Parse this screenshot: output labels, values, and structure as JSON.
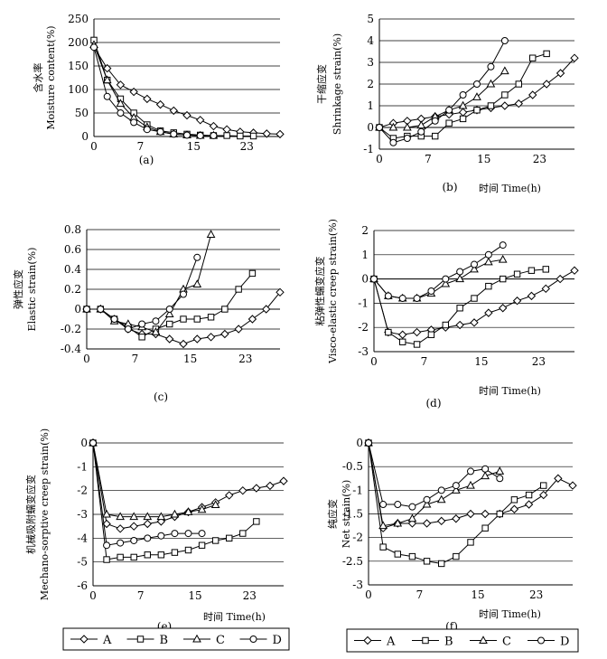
{
  "legend": {
    "entries": [
      "A",
      "B",
      "C",
      "D"
    ]
  },
  "chart_data": [
    {
      "id": "a",
      "type": "line",
      "panel_label": "(a)",
      "ylabel": "Moisture content(%)",
      "ylabel_cn": "含水率",
      "xlabel": "",
      "xticks": [
        0,
        7,
        15,
        23
      ],
      "yticks": [
        0,
        50,
        100,
        150,
        200,
        250
      ],
      "xlim": [
        0,
        28
      ],
      "ylim": [
        0,
        250
      ],
      "grid": true,
      "series": [
        {
          "name": "A",
          "x": [
            0,
            2,
            4,
            6,
            8,
            10,
            12,
            14,
            16,
            18,
            20,
            22,
            24,
            26,
            28
          ],
          "y": [
            190,
            145,
            110,
            95,
            80,
            68,
            55,
            45,
            35,
            22,
            15,
            10,
            8,
            6,
            5
          ]
        },
        {
          "name": "B",
          "x": [
            0,
            2,
            4,
            6,
            8,
            10,
            12,
            14,
            16,
            18,
            20,
            22,
            24
          ],
          "y": [
            205,
            120,
            80,
            50,
            25,
            12,
            8,
            5,
            3,
            2,
            2,
            1,
            1
          ]
        },
        {
          "name": "C",
          "x": [
            0,
            2,
            4,
            6,
            8,
            10,
            12,
            14,
            16,
            18
          ],
          "y": [
            195,
            120,
            70,
            40,
            20,
            10,
            5,
            3,
            2,
            2
          ]
        },
        {
          "name": "D",
          "x": [
            0,
            2,
            4,
            6,
            8,
            10,
            12,
            14,
            16,
            18
          ],
          "y": [
            190,
            85,
            50,
            30,
            15,
            10,
            5,
            3,
            2,
            2
          ]
        }
      ]
    },
    {
      "id": "b",
      "type": "line",
      "panel_label": "(b)",
      "ylabel": "Shrinkage strain(%)",
      "ylabel_cn": "干缩应变",
      "xlabel": "时间  Time(h)",
      "xticks": [
        0,
        7,
        15,
        23
      ],
      "yticks": [
        -1,
        0,
        1,
        2,
        3,
        4,
        5
      ],
      "xlim": [
        0,
        28
      ],
      "ylim": [
        -1,
        5
      ],
      "grid": true,
      "series": [
        {
          "name": "A",
          "x": [
            0,
            2,
            4,
            6,
            8,
            10,
            12,
            14,
            16,
            18,
            20,
            22,
            24,
            26,
            28
          ],
          "y": [
            0,
            0.2,
            0.3,
            0.4,
            0.5,
            0.6,
            0.7,
            0.8,
            0.9,
            1.0,
            1.1,
            1.5,
            2.0,
            2.5,
            3.2
          ]
        },
        {
          "name": "B",
          "x": [
            0,
            2,
            4,
            6,
            8,
            10,
            12,
            14,
            16,
            18,
            20,
            22,
            24
          ],
          "y": [
            0,
            -0.5,
            -0.4,
            -0.4,
            -0.4,
            0.2,
            0.4,
            0.8,
            1.0,
            1.5,
            2.0,
            3.2,
            3.4
          ]
        },
        {
          "name": "C",
          "x": [
            0,
            2,
            4,
            6,
            8,
            10,
            12,
            14,
            16,
            18
          ],
          "y": [
            0,
            0,
            0,
            0.1,
            0.5,
            0.8,
            1.0,
            1.4,
            2.0,
            2.6
          ]
        },
        {
          "name": "D",
          "x": [
            0,
            2,
            4,
            6,
            8,
            10,
            12,
            14,
            16,
            18
          ],
          "y": [
            0,
            -0.7,
            -0.5,
            -0.2,
            0.3,
            0.8,
            1.5,
            2.0,
            2.8,
            4.0
          ]
        }
      ]
    },
    {
      "id": "c",
      "type": "line",
      "panel_label": "(c)",
      "ylabel": "Elastic strain(%)",
      "ylabel_cn": "弹性应变",
      "xlabel": "",
      "xticks": [
        0,
        7,
        15,
        23
      ],
      "yticks": [
        -0.4,
        -0.2,
        0,
        0.2,
        0.4,
        0.6,
        0.8
      ],
      "xlim": [
        0,
        28
      ],
      "ylim": [
        -0.4,
        0.8
      ],
      "grid": true,
      "series": [
        {
          "name": "A",
          "x": [
            0,
            2,
            4,
            6,
            8,
            10,
            12,
            14,
            16,
            18,
            20,
            22,
            24,
            26,
            28
          ],
          "y": [
            0,
            0,
            -0.1,
            -0.2,
            -0.25,
            -0.25,
            -0.3,
            -0.35,
            -0.3,
            -0.28,
            -0.25,
            -0.2,
            -0.1,
            0,
            0.17
          ]
        },
        {
          "name": "B",
          "x": [
            0,
            2,
            4,
            6,
            8,
            10,
            12,
            14,
            16,
            18,
            20,
            22,
            24
          ],
          "y": [
            0,
            0,
            -0.1,
            -0.18,
            -0.28,
            -0.2,
            -0.15,
            -0.1,
            -0.1,
            -0.08,
            0,
            0.2,
            0.36
          ]
        },
        {
          "name": "C",
          "x": [
            0,
            2,
            4,
            6,
            8,
            10,
            12,
            14,
            16,
            18
          ],
          "y": [
            0,
            0,
            -0.12,
            -0.15,
            -0.18,
            -0.23,
            -0.05,
            0.2,
            0.25,
            0.75
          ]
        },
        {
          "name": "D",
          "x": [
            0,
            2,
            4,
            6,
            8,
            10,
            12,
            14,
            16
          ],
          "y": [
            0,
            0,
            -0.1,
            -0.2,
            -0.15,
            -0.12,
            0,
            0.15,
            0.52
          ]
        }
      ]
    },
    {
      "id": "d",
      "type": "line",
      "panel_label": "(d)",
      "ylabel": "Visco-elastic creep strain(%)",
      "ylabel_cn": "粘弹性蠕变应变",
      "xlabel": "时间  Time(h)",
      "xticks": [
        0,
        7,
        15,
        23
      ],
      "yticks": [
        -3,
        -2,
        -1,
        0,
        1,
        2
      ],
      "xlim": [
        0,
        28
      ],
      "ylim": [
        -3,
        2
      ],
      "grid": true,
      "series": [
        {
          "name": "A",
          "x": [
            0,
            2,
            4,
            6,
            8,
            10,
            12,
            14,
            16,
            18,
            20,
            22,
            24,
            26,
            28
          ],
          "y": [
            0,
            -2.2,
            -2.3,
            -2.2,
            -2.1,
            -2.0,
            -1.9,
            -1.8,
            -1.4,
            -1.2,
            -0.9,
            -0.7,
            -0.4,
            0,
            0.35
          ]
        },
        {
          "name": "B",
          "x": [
            0,
            2,
            4,
            6,
            8,
            10,
            12,
            14,
            16,
            18,
            20,
            22,
            24
          ],
          "y": [
            0,
            -2.2,
            -2.6,
            -2.7,
            -2.3,
            -1.9,
            -1.2,
            -0.8,
            -0.3,
            0,
            0.2,
            0.35,
            0.4
          ]
        },
        {
          "name": "C",
          "x": [
            0,
            2,
            4,
            6,
            8,
            10,
            12,
            14,
            16,
            18
          ],
          "y": [
            0,
            -0.7,
            -0.8,
            -0.8,
            -0.6,
            -0.2,
            0,
            0.4,
            0.7,
            0.8
          ]
        },
        {
          "name": "D",
          "x": [
            0,
            2,
            4,
            6,
            8,
            10,
            12,
            14,
            16,
            18
          ],
          "y": [
            0,
            -0.7,
            -0.8,
            -0.8,
            -0.5,
            0,
            0.3,
            0.6,
            1.0,
            1.4
          ]
        }
      ]
    },
    {
      "id": "e",
      "type": "line",
      "panel_label": "(e)",
      "ylabel": "Mechano-sorptive creep strain(%)",
      "ylabel_cn": "机械吸附蠕变应变",
      "xlabel": "时间  Time(h)",
      "xticks": [
        0,
        7,
        15,
        23
      ],
      "yticks": [
        -6,
        -5,
        -4,
        -3,
        -2,
        -1,
        0
      ],
      "xlim": [
        0,
        28
      ],
      "ylim": [
        -6,
        0
      ],
      "grid": true,
      "series": [
        {
          "name": "A",
          "x": [
            0,
            2,
            4,
            6,
            8,
            10,
            12,
            14,
            16,
            18,
            20,
            22,
            24,
            26,
            28
          ],
          "y": [
            0,
            -3.4,
            -3.6,
            -3.5,
            -3.4,
            -3.3,
            -3.1,
            -2.9,
            -2.7,
            -2.5,
            -2.2,
            -2.0,
            -1.9,
            -1.8,
            -1.6
          ]
        },
        {
          "name": "B",
          "x": [
            0,
            2,
            4,
            6,
            8,
            10,
            12,
            14,
            16,
            18,
            20,
            22,
            24
          ],
          "y": [
            0,
            -4.9,
            -4.8,
            -4.8,
            -4.7,
            -4.7,
            -4.6,
            -4.5,
            -4.3,
            -4.1,
            -4.0,
            -3.8,
            -3.3
          ]
        },
        {
          "name": "C",
          "x": [
            0,
            2,
            4,
            6,
            8,
            10,
            12,
            14,
            16,
            18
          ],
          "y": [
            0,
            -3.0,
            -3.1,
            -3.1,
            -3.1,
            -3.1,
            -3.0,
            -2.9,
            -2.8,
            -2.6
          ]
        },
        {
          "name": "D",
          "x": [
            0,
            2,
            4,
            6,
            8,
            10,
            12,
            14,
            16
          ],
          "y": [
            0,
            -4.3,
            -4.2,
            -4.1,
            -4.0,
            -3.9,
            -3.8,
            -3.8,
            -3.8
          ]
        }
      ]
    },
    {
      "id": "f",
      "type": "line",
      "panel_label": "(f)",
      "ylabel": "Net strain(%)",
      "ylabel_cn": "纯应变",
      "xlabel": "时间  Time(h)",
      "xticks": [
        0,
        7,
        15,
        23
      ],
      "yticks": [
        -3,
        -2.5,
        -2,
        -1.5,
        -1,
        -0.5,
        0
      ],
      "xlim": [
        0,
        28
      ],
      "ylim": [
        -3,
        0
      ],
      "grid": true,
      "series": [
        {
          "name": "A",
          "x": [
            0,
            2,
            4,
            6,
            8,
            10,
            12,
            14,
            16,
            18,
            20,
            22,
            24,
            26,
            28
          ],
          "y": [
            0,
            -1.8,
            -1.7,
            -1.7,
            -1.7,
            -1.65,
            -1.6,
            -1.5,
            -1.5,
            -1.5,
            -1.4,
            -1.3,
            -1.1,
            -0.75,
            -0.9
          ]
        },
        {
          "name": "B",
          "x": [
            0,
            2,
            4,
            6,
            8,
            10,
            12,
            14,
            16,
            18,
            20,
            22,
            24
          ],
          "y": [
            0,
            -2.2,
            -2.35,
            -2.4,
            -2.5,
            -2.55,
            -2.4,
            -2.1,
            -1.8,
            -1.5,
            -1.2,
            -1.1,
            -0.9
          ]
        },
        {
          "name": "C",
          "x": [
            0,
            2,
            4,
            6,
            8,
            10,
            12,
            14,
            16,
            18
          ],
          "y": [
            0,
            -1.75,
            -1.7,
            -1.6,
            -1.3,
            -1.2,
            -1.0,
            -0.9,
            -0.7,
            -0.6
          ]
        },
        {
          "name": "D",
          "x": [
            0,
            2,
            4,
            6,
            8,
            10,
            12,
            14,
            16,
            18
          ],
          "y": [
            0,
            -1.3,
            -1.3,
            -1.35,
            -1.2,
            -1.0,
            -0.9,
            -0.6,
            -0.55,
            -0.75
          ]
        }
      ]
    }
  ]
}
